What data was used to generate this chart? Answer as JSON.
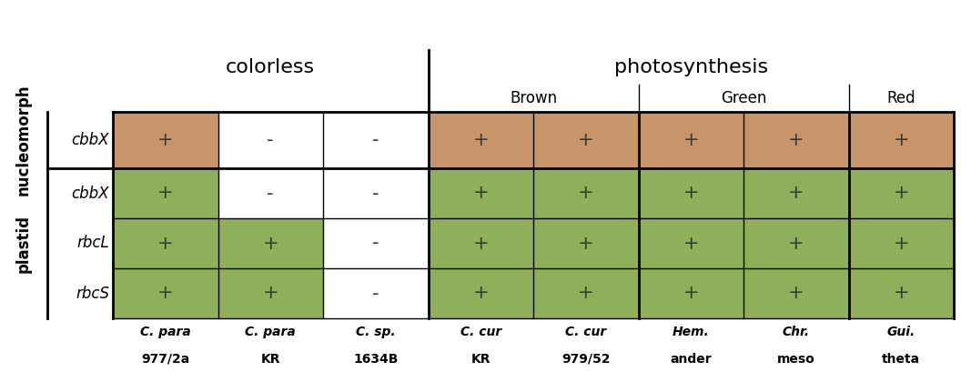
{
  "fig_width": 10.56,
  "fig_height": 4.2,
  "dpi": 100,
  "col_labels": [
    "C. para\n977/2a",
    "C. para\nKR",
    "C. sp.\n1634B",
    "C. cur\nKR",
    "C. cur\n979/52",
    "Hem.\nander",
    "Chr.\nmeso",
    "Gui.\ntheta"
  ],
  "row_groups": [
    {
      "label": "nucleomorph",
      "rows": [
        {
          "gene": "cbbX",
          "values": [
            "+",
            "-",
            "-",
            "+",
            "+",
            "+",
            "+",
            "+"
          ]
        }
      ]
    },
    {
      "label": "plastid",
      "rows": [
        {
          "gene": "cbbX",
          "values": [
            "+",
            "-",
            "-",
            "+",
            "+",
            "+",
            "+",
            "+"
          ]
        },
        {
          "gene": "rbcL",
          "values": [
            "+",
            "+",
            "-",
            "+",
            "+",
            "+",
            "+",
            "+"
          ]
        },
        {
          "gene": "rbcS",
          "values": [
            "+",
            "+",
            "-",
            "+",
            "+",
            "+",
            "+",
            "+"
          ]
        }
      ]
    }
  ],
  "brown_color": "#C8956A",
  "green_color": "#8FAF5A",
  "white_color": "#FFFFFF",
  "cell_colors": {
    "nucleomorph": {
      "cbbX": [
        "#C8956A",
        "#FFFFFF",
        "#FFFFFF",
        "#C8956A",
        "#C8956A",
        "#C8956A",
        "#C8956A",
        "#C8956A"
      ]
    },
    "plastid": {
      "cbbX": [
        "#8FAF5A",
        "#FFFFFF",
        "#FFFFFF",
        "#8FAF5A",
        "#8FAF5A",
        "#8FAF5A",
        "#8FAF5A",
        "#8FAF5A"
      ],
      "rbcL": [
        "#8FAF5A",
        "#8FAF5A",
        "#FFFFFF",
        "#8FAF5A",
        "#8FAF5A",
        "#8FAF5A",
        "#8FAF5A",
        "#8FAF5A"
      ],
      "rbcS": [
        "#8FAF5A",
        "#8FAF5A",
        "#FFFFFF",
        "#8FAF5A",
        "#8FAF5A",
        "#8FAF5A",
        "#8FAF5A",
        "#8FAF5A"
      ]
    }
  },
  "lw_thin": 1.0,
  "lw_thick": 2.0
}
